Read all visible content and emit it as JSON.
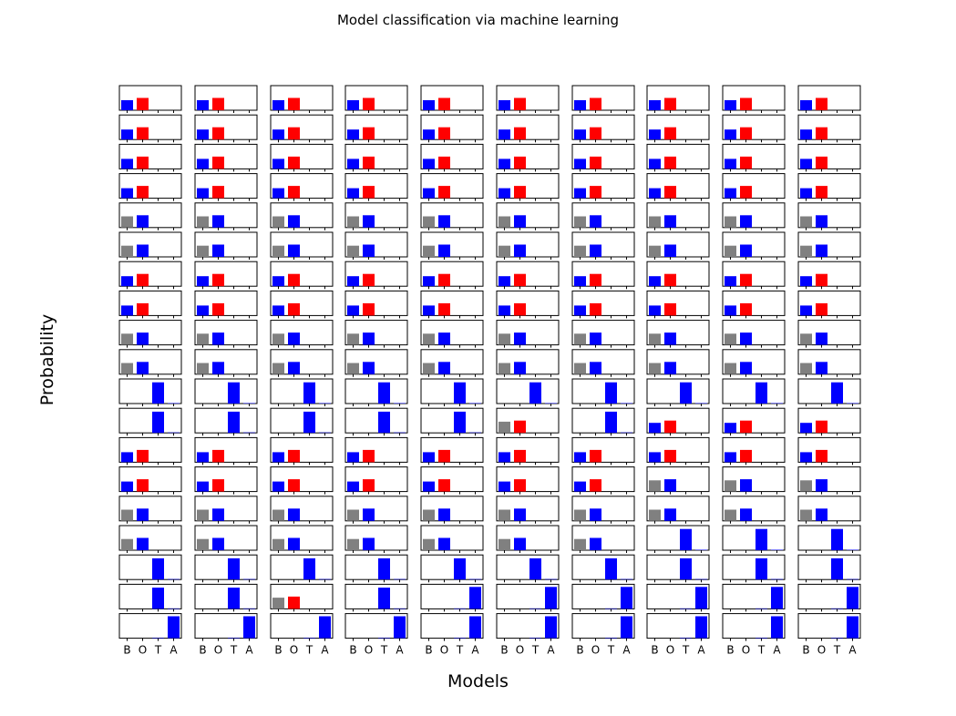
{
  "chart_data": {
    "type": "bar",
    "title": "Model classification via machine learning",
    "xlabel": "Models",
    "ylabel": "Probability",
    "categories": [
      "B",
      "O",
      "T",
      "A"
    ],
    "ylim": [
      0,
      1
    ],
    "rows": 19,
    "cols": 10,
    "colors": {
      "B": "#0000ff",
      "O": "#ff0000",
      "T": "#0000ff",
      "A": "#0000ff",
      "gray": "#808080"
    },
    "patterns": {
      "BO_low": [
        {
          "cat": "B",
          "value": 0.45,
          "color": "blue"
        },
        {
          "cat": "O",
          "value": 0.55,
          "color": "red"
        }
      ],
      "GB": [
        {
          "cat": "B",
          "value": 0.5,
          "color": "gray"
        },
        {
          "cat": "O",
          "value": 0.55,
          "color": "blue"
        }
      ],
      "GR": [
        {
          "cat": "B",
          "value": 0.5,
          "color": "gray"
        },
        {
          "cat": "O",
          "value": 0.55,
          "color": "red"
        }
      ],
      "T": [
        {
          "cat": "T",
          "value": 0.95,
          "color": "blue"
        },
        {
          "cat": "A",
          "value": 0.02,
          "color": "blue"
        }
      ],
      "A": [
        {
          "cat": "T",
          "value": 0.02,
          "color": "blue"
        },
        {
          "cat": "A",
          "value": 0.98,
          "color": "blue"
        }
      ]
    },
    "grid": [
      [
        "BO_low",
        "BO_low",
        "BO_low",
        "BO_low",
        "BO_low",
        "BO_low",
        "BO_low",
        "BO_low",
        "BO_low",
        "BO_low"
      ],
      [
        "BO_low",
        "BO_low",
        "BO_low",
        "BO_low",
        "BO_low",
        "BO_low",
        "BO_low",
        "BO_low",
        "BO_low",
        "BO_low"
      ],
      [
        "BO_low",
        "BO_low",
        "BO_low",
        "BO_low",
        "BO_low",
        "BO_low",
        "BO_low",
        "BO_low",
        "BO_low",
        "BO_low"
      ],
      [
        "BO_low",
        "BO_low",
        "BO_low",
        "BO_low",
        "BO_low",
        "BO_low",
        "BO_low",
        "BO_low",
        "BO_low",
        "BO_low"
      ],
      [
        "GB",
        "GB",
        "GB",
        "GB",
        "GB",
        "GB",
        "GB",
        "GB",
        "GB",
        "GB"
      ],
      [
        "GB",
        "GB",
        "GB",
        "GB",
        "GB",
        "GB",
        "GB",
        "GB",
        "GB",
        "GB"
      ],
      [
        "BO_low",
        "BO_low",
        "BO_low",
        "BO_low",
        "BO_low",
        "BO_low",
        "BO_low",
        "BO_low",
        "BO_low",
        "BO_low"
      ],
      [
        "BO_low",
        "BO_low",
        "BO_low",
        "BO_low",
        "BO_low",
        "BO_low",
        "BO_low",
        "BO_low",
        "BO_low",
        "BO_low"
      ],
      [
        "GB",
        "GB",
        "GB",
        "GB",
        "GB",
        "GB",
        "GB",
        "GB",
        "GB",
        "GB"
      ],
      [
        "GB",
        "GB",
        "GB",
        "GB",
        "GB",
        "GB",
        "GB",
        "GB",
        "GB",
        "GB"
      ],
      [
        "T",
        "T",
        "T",
        "T",
        "T",
        "T",
        "T",
        "T",
        "T",
        "T"
      ],
      [
        "T",
        "T",
        "T",
        "T",
        "T",
        "GR",
        "T",
        "BO_low",
        "BO_low",
        "BO_low"
      ],
      [
        "BO_low",
        "BO_low",
        "BO_low",
        "BO_low",
        "BO_low",
        "BO_low",
        "BO_low",
        "BO_low",
        "BO_low",
        "BO_low"
      ],
      [
        "BO_low",
        "BO_low",
        "BO_low",
        "BO_low",
        "BO_low",
        "BO_low",
        "BO_low",
        "GB",
        "GB",
        "GB"
      ],
      [
        "GB",
        "GB",
        "GB",
        "GB",
        "GB",
        "GB",
        "GB",
        "GB",
        "GB",
        "GB"
      ],
      [
        "GB",
        "GB",
        "GB",
        "GB",
        "GB",
        "GB",
        "GB",
        "T",
        "T",
        "T"
      ],
      [
        "T",
        "T",
        "T",
        "T",
        "T",
        "T",
        "T",
        "T",
        "T",
        "T"
      ],
      [
        "T",
        "T",
        "GR",
        "T",
        "A",
        "A",
        "A",
        "A",
        "A",
        "A"
      ],
      [
        "A",
        "A",
        "A",
        "A",
        "A",
        "A",
        "A",
        "A",
        "A",
        "A"
      ]
    ]
  }
}
